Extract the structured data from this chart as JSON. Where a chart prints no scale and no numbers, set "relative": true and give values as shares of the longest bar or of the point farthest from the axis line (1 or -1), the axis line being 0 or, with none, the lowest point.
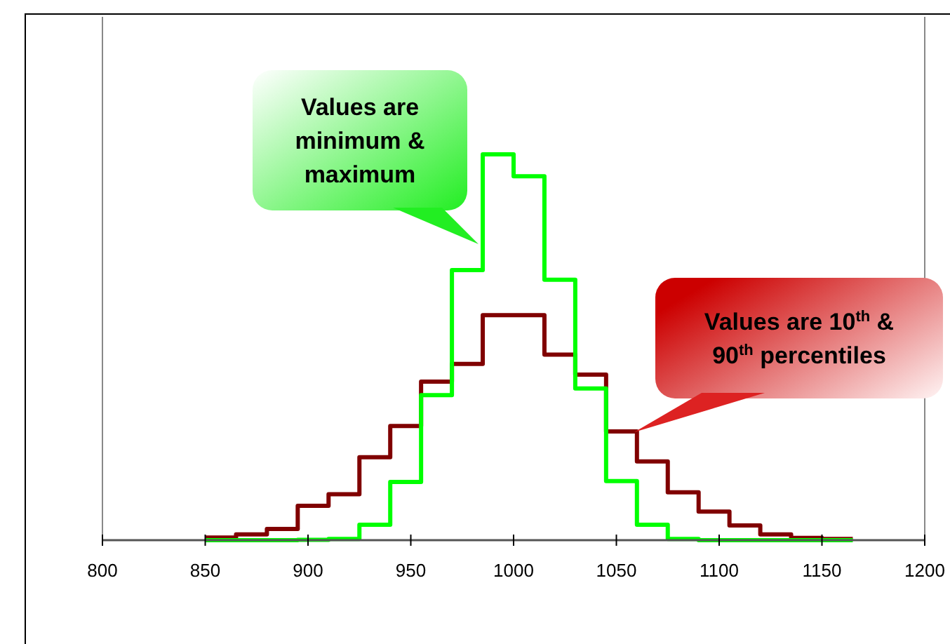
{
  "chart_data": {
    "type": "step",
    "relative": true,
    "x": [
      850,
      865,
      880,
      895,
      910,
      925,
      940,
      955,
      970,
      985,
      1000,
      1015,
      1030,
      1045,
      1060,
      1075,
      1090,
      1105,
      1120,
      1135,
      1150,
      1165
    ],
    "series": [
      {
        "color": "#800000",
        "values": [
          0.007,
          0.015,
          0.029,
          0.089,
          0.119,
          0.215,
          0.296,
          0.411,
          0.457,
          0.583,
          0.583,
          0.481,
          0.429,
          0.282,
          0.204,
          0.124,
          0.074,
          0.038,
          0.015,
          0.006,
          0.003,
          0.003
        ]
      },
      {
        "color": "#00ff00",
        "values": [
          0,
          0,
          0,
          0.001,
          0.003,
          0.04,
          0.151,
          0.376,
          0.7,
          1,
          0.943,
          0.675,
          0.393,
          0.153,
          0.04,
          0.003,
          0,
          0,
          0,
          0,
          0,
          0
        ]
      }
    ],
    "xlim": [
      800,
      1200
    ],
    "xticks": [
      800,
      850,
      900,
      950,
      1000,
      1050,
      1100,
      1150,
      1200
    ],
    "annotations": [
      "Values are minimum & maximum",
      "Values are 10$^{th}$ & 90$^{th}$ percentiles"
    ]
  }
}
